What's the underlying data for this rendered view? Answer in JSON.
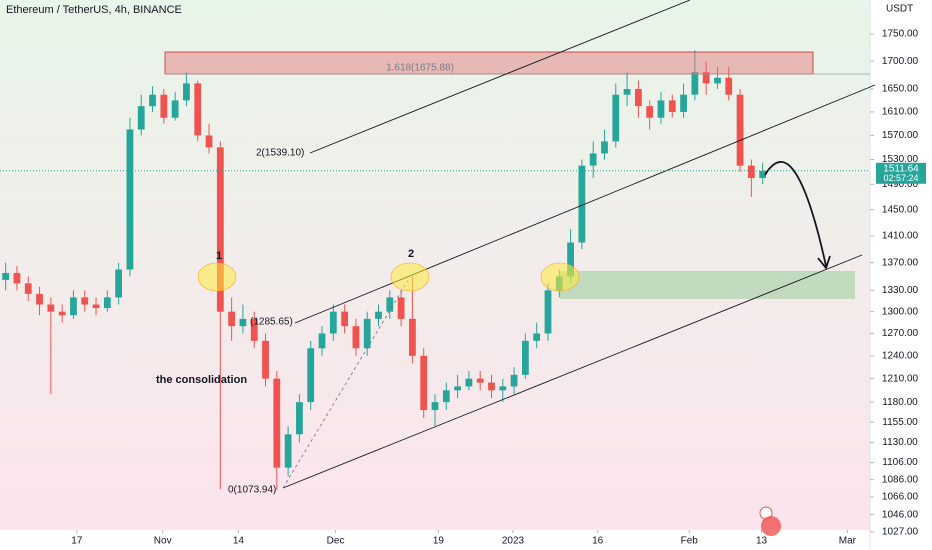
{
  "chart_data": {
    "type": "candlestick",
    "title": "Ethereum / TetherUS, 4h, BINANCE",
    "y_axis_label": "USDT",
    "log_scale": true,
    "up_color": "#26a69a",
    "down_color": "#ef5350",
    "xlim": [
      0,
      77
    ],
    "ylim": [
      1029,
      1815
    ],
    "xticks": [
      {
        "value": 6.8,
        "label": "17"
      },
      {
        "value": 14.4,
        "label": "Nov"
      },
      {
        "value": 21.1,
        "label": "14"
      },
      {
        "value": 29.7,
        "label": "Dec"
      },
      {
        "value": 38.8,
        "label": "19"
      },
      {
        "value": 45.4,
        "label": "2023"
      },
      {
        "value": 52.9,
        "label": "16"
      },
      {
        "value": 61.0,
        "label": "Feb"
      },
      {
        "value": 67.4,
        "label": "13"
      },
      {
        "value": 75.0,
        "label": "Mar"
      }
    ],
    "yticks": [
      {
        "value": 1750,
        "label": "1750.00"
      },
      {
        "value": 1700,
        "label": "1700.00"
      },
      {
        "value": 1650,
        "label": "1650.00"
      },
      {
        "value": 1610,
        "label": "1610.00"
      },
      {
        "value": 1570,
        "label": "1570.00"
      },
      {
        "value": 1530,
        "label": "1530.00"
      },
      {
        "value": 1490,
        "label": "1490.00"
      },
      {
        "value": 1450,
        "label": "1450.00"
      },
      {
        "value": 1410,
        "label": "1410.00"
      },
      {
        "value": 1370,
        "label": "1370.00"
      },
      {
        "value": 1330,
        "label": "1330.00"
      },
      {
        "value": 1300,
        "label": "1300.00"
      },
      {
        "value": 1270,
        "label": "1270.00"
      },
      {
        "value": 1240,
        "label": "1240.00"
      },
      {
        "value": 1210,
        "label": "1210.00"
      },
      {
        "value": 1180,
        "label": "1180.00"
      },
      {
        "value": 1155,
        "label": "1155.00"
      },
      {
        "value": 1130,
        "label": "1130.00"
      },
      {
        "value": 1106,
        "label": "1106.00"
      },
      {
        "value": 1086,
        "label": "1086.00"
      },
      {
        "value": 1066,
        "label": "1066.00"
      },
      {
        "value": 1046,
        "label": "1046.00"
      },
      {
        "value": 1027,
        "label": "1027.00"
      }
    ],
    "last_price": 1511.64,
    "countdown": "02:57:24",
    "annotations": {
      "fib_1618": "1.618(1675.88)",
      "fib_2": "2(1539.10)",
      "fib_1285": "(1285.65)",
      "fib_0": "0(1073.94)",
      "point_1": "1",
      "point_2": "2",
      "consolidation": "the consolidation"
    },
    "open": [
      1345,
      1355,
      1340,
      1325,
      1310,
      1300,
      1295,
      1320,
      1310,
      1305,
      1320,
      1360,
      1580,
      1620,
      1640,
      1600,
      1630,
      1660,
      1570,
      1550,
      1300,
      1280,
      1290,
      1260,
      1210,
      1100,
      1140,
      1180,
      1250,
      1270,
      1300,
      1280,
      1250,
      1290,
      1300,
      1320,
      1290,
      1240,
      1170,
      1180,
      1195,
      1200,
      1210,
      1205,
      1195,
      1200,
      1215,
      1260,
      1270,
      1330,
      1350,
      1400,
      1520,
      1540,
      1560,
      1640,
      1650,
      1620,
      1600,
      1630,
      1610,
      1640,
      1680,
      1660,
      1670,
      1640,
      1520,
      1500
    ],
    "high": [
      1370,
      1365,
      1350,
      1335,
      1320,
      1310,
      1330,
      1330,
      1320,
      1330,
      1370,
      1600,
      1640,
      1655,
      1650,
      1645,
      1680,
      1665,
      1590,
      1560,
      1320,
      1310,
      1300,
      1270,
      1220,
      1150,
      1190,
      1260,
      1280,
      1310,
      1310,
      1290,
      1300,
      1310,
      1330,
      1330,
      1350,
      1250,
      1190,
      1205,
      1215,
      1220,
      1220,
      1215,
      1210,
      1225,
      1270,
      1285,
      1340,
      1360,
      1420,
      1530,
      1560,
      1580,
      1660,
      1680,
      1665,
      1630,
      1645,
      1640,
      1660,
      1720,
      1700,
      1690,
      1690,
      1650,
      1530,
      1525
    ],
    "low": [
      1330,
      1330,
      1315,
      1295,
      1190,
      1285,
      1290,
      1300,
      1295,
      1300,
      1310,
      1350,
      1570,
      1610,
      1590,
      1595,
      1620,
      1560,
      1540,
      1075,
      1260,
      1270,
      1250,
      1200,
      1074,
      1090,
      1130,
      1170,
      1240,
      1260,
      1270,
      1240,
      1240,
      1280,
      1290,
      1280,
      1230,
      1160,
      1150,
      1170,
      1185,
      1195,
      1195,
      1185,
      1180,
      1190,
      1210,
      1250,
      1260,
      1320,
      1340,
      1390,
      1500,
      1530,
      1550,
      1620,
      1600,
      1580,
      1590,
      1600,
      1600,
      1630,
      1640,
      1650,
      1630,
      1510,
      1470,
      1490
    ],
    "close": [
      1355,
      1340,
      1325,
      1310,
      1300,
      1295,
      1320,
      1310,
      1305,
      1320,
      1360,
      1580,
      1620,
      1640,
      1600,
      1630,
      1660,
      1570,
      1550,
      1300,
      1280,
      1290,
      1260,
      1210,
      1100,
      1140,
      1180,
      1250,
      1270,
      1300,
      1280,
      1250,
      1290,
      1300,
      1320,
      1290,
      1240,
      1170,
      1180,
      1195,
      1200,
      1210,
      1205,
      1195,
      1200,
      1215,
      1260,
      1270,
      1330,
      1350,
      1400,
      1520,
      1540,
      1560,
      1640,
      1650,
      1620,
      1600,
      1630,
      1610,
      1640,
      1680,
      1660,
      1670,
      1640,
      1520,
      1500,
      1511.64
    ]
  }
}
